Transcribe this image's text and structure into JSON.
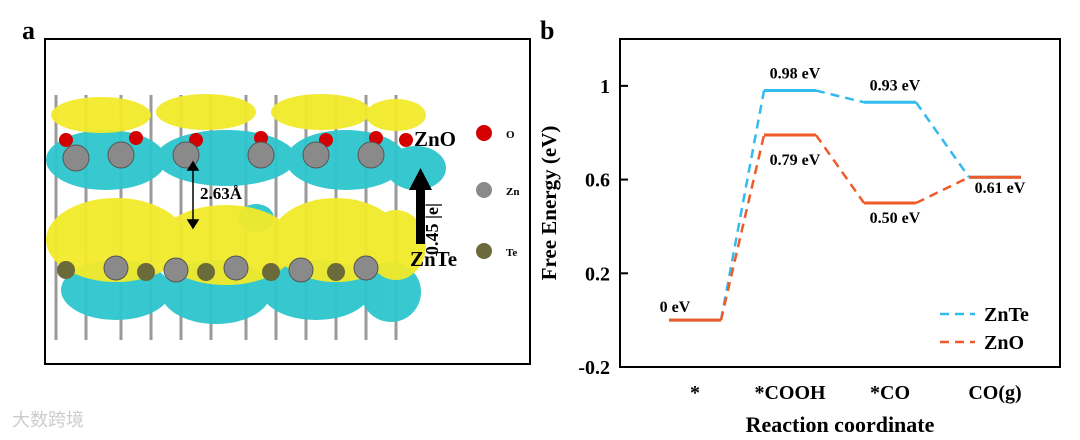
{
  "panel_labels": {
    "a": "a",
    "b": "b"
  },
  "structure": {
    "distance_label": "2.63Å",
    "charge_label": "0.45 |e|",
    "top_layer_label": "ZnO",
    "bottom_layer_label": "ZnTe",
    "legend": [
      {
        "element": "O",
        "color": "#d40000"
      },
      {
        "element": "Zn",
        "color": "#8a8a8a"
      },
      {
        "element": "Te",
        "color": "#6b6a3a"
      }
    ],
    "colors": {
      "accumulation": "#f2ea2a",
      "depletion": "#2cc6cc"
    }
  },
  "chart_data": {
    "type": "line",
    "categories": [
      "*",
      "*COOH",
      "*CO",
      "CO(g)"
    ],
    "xlabel": "Reaction coordinate",
    "ylabel": "Free Energy (eV)",
    "ylim": [
      -0.2,
      1.2
    ],
    "yticks": [
      -0.2,
      0.2,
      0.6,
      1
    ],
    "ytick_labels": [
      "-0.2",
      "0.2",
      "0.6",
      "1"
    ],
    "series": [
      {
        "name": "ZnTe",
        "color": "#33bbee",
        "values": [
          0,
          0.98,
          0.93,
          0.61
        ],
        "labels": [
          "0 eV",
          "0.98 eV",
          "0.93 eV",
          "0.61 eV"
        ]
      },
      {
        "name": "ZnO",
        "color": "#f05a28",
        "values": [
          0,
          0.79,
          0.5,
          0.61
        ],
        "labels": [
          "",
          "0.79 eV",
          "0.50 eV",
          ""
        ]
      }
    ],
    "legend_position": "bottom-right"
  },
  "watermark": "大数跨境"
}
